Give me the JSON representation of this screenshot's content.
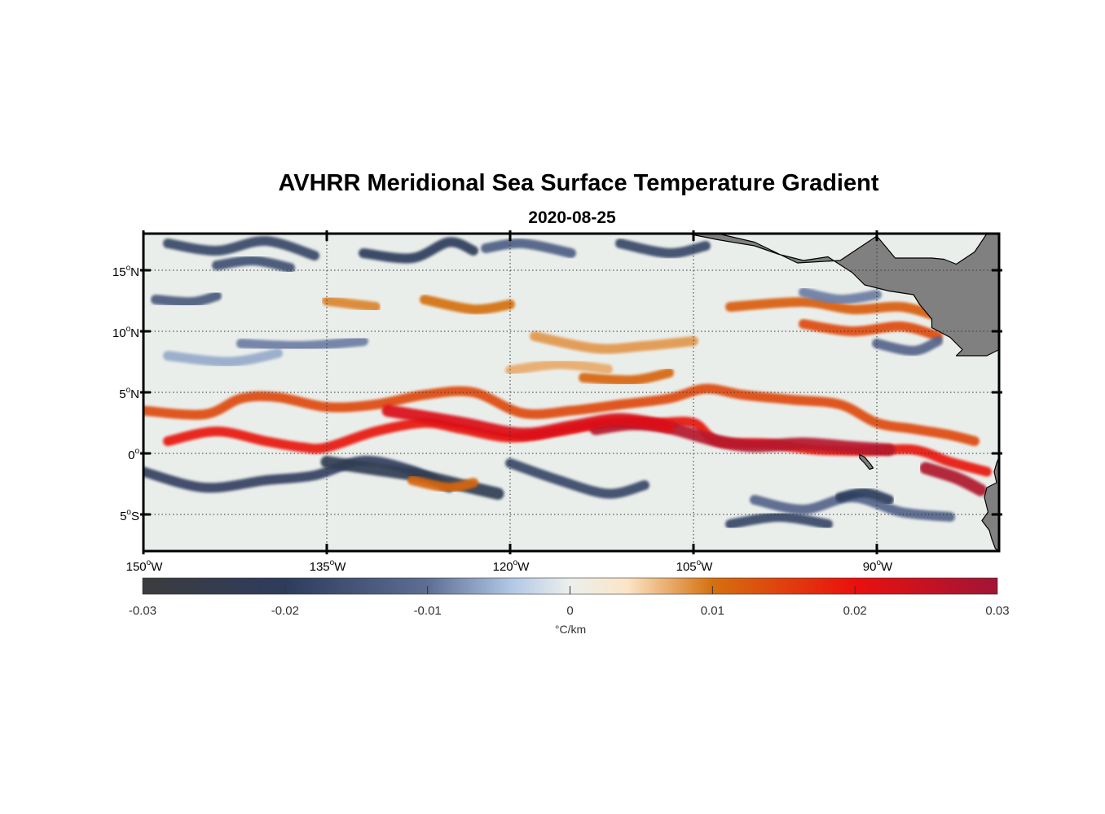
{
  "title": "AVHRR Meridional Sea Surface Temperature Gradient",
  "subtitle": "2020-08-25",
  "map": {
    "lon_range": [
      -150,
      -80
    ],
    "lat_range": [
      -8,
      18
    ],
    "gridlines": true,
    "grid_style": "dotted",
    "land_color": "#808080",
    "lon_ticks": [
      {
        "value": -150,
        "deg": "150",
        "sup": "o",
        "hemi": "W"
      },
      {
        "value": -135,
        "deg": "135",
        "sup": "o",
        "hemi": "W"
      },
      {
        "value": -120,
        "deg": "120",
        "sup": "o",
        "hemi": "W"
      },
      {
        "value": -105,
        "deg": "105",
        "sup": "o",
        "hemi": "W"
      },
      {
        "value": -90,
        "deg": "90",
        "sup": "o",
        "hemi": "W"
      }
    ],
    "lat_ticks": [
      {
        "value": 15,
        "deg": "15",
        "sup": "o",
        "hemi": "N"
      },
      {
        "value": 10,
        "deg": "10",
        "sup": "o",
        "hemi": "N"
      },
      {
        "value": 5,
        "deg": "5",
        "sup": "o",
        "hemi": "N"
      },
      {
        "value": 0,
        "deg": "0",
        "sup": "o",
        "hemi": ""
      },
      {
        "value": -5,
        "deg": "5",
        "sup": "o",
        "hemi": "S"
      }
    ],
    "features": [
      {
        "lon": [
          -150,
          -145,
          -142,
          -139,
          -135,
          -131,
          -127,
          -123,
          -119,
          -115,
          -111,
          -107,
          -104,
          -101,
          -97,
          -93,
          -90,
          -87,
          -84,
          -82
        ],
        "lat": [
          3.5,
          3.2,
          4.5,
          4.6,
          3.8,
          4.0,
          4.8,
          5.0,
          3.3,
          3.5,
          4.0,
          4.5,
          5.3,
          4.8,
          4.4,
          4.0,
          2.5,
          2.0,
          1.5,
          1.0
        ],
        "value": 0.014
      },
      {
        "lon": [
          -148,
          -144,
          -140,
          -137,
          -135,
          -131,
          -127,
          -124,
          -120,
          -116,
          -112,
          -108,
          -105,
          -103,
          -99,
          -95,
          -91,
          -87,
          -84,
          -81
        ],
        "lat": [
          1.0,
          1.8,
          1.0,
          0.5,
          0.5,
          1.8,
          2.5,
          2.0,
          1.3,
          1.8,
          2.5,
          2.5,
          2.5,
          1.0,
          0.8,
          0.3,
          0.2,
          0.3,
          -0.7,
          -1.5
        ],
        "value": 0.019
      },
      {
        "lon": [
          -113,
          -110,
          -107,
          -103,
          -100,
          -96,
          -92,
          -89
        ],
        "lat": [
          2.0,
          2.4,
          2.1,
          1.0,
          0.6,
          0.8,
          0.5,
          0.3
        ],
        "value": 0.027
      },
      {
        "lon": [
          -130,
          -124,
          -119,
          -115,
          -111,
          -107
        ],
        "lat": [
          3.5,
          2.5,
          1.6,
          2.2,
          2.8,
          2.2
        ],
        "value": 0.022
      },
      {
        "lon": [
          -86,
          -83.5,
          -81.5
        ],
        "lat": [
          -1.2,
          -2.0,
          -3.0
        ],
        "value": 0.028
      },
      {
        "lon": [
          -102,
          -96,
          -92,
          -88,
          -85
        ],
        "lat": [
          12.0,
          12.4,
          11.8,
          12.0,
          11.2
        ],
        "value": 0.012
      },
      {
        "lon": [
          -96,
          -92,
          -88,
          -85
        ],
        "lat": [
          10.6,
          10.0,
          10.4,
          9.6
        ],
        "value": 0.014
      },
      {
        "lon": [
          -127,
          -123,
          -120
        ],
        "lat": [
          12.6,
          11.8,
          12.2
        ],
        "value": 0.01
      },
      {
        "lon": [
          -135,
          -131
        ],
        "lat": [
          12.5,
          12.0
        ],
        "value": 0.009
      },
      {
        "lon": [
          -118,
          -113,
          -109,
          -105
        ],
        "lat": [
          9.6,
          8.6,
          8.8,
          9.2
        ],
        "value": 0.008
      },
      {
        "lon": [
          -114,
          -110,
          -107
        ],
        "lat": [
          6.2,
          6.0,
          6.6
        ],
        "value": 0.011
      },
      {
        "lon": [
          -120,
          -116,
          -112
        ],
        "lat": [
          6.8,
          7.3,
          6.9
        ],
        "value": 0.007
      },
      {
        "lon": [
          -150,
          -145,
          -140,
          -136,
          -132,
          -128,
          -125
        ],
        "lat": [
          -1.5,
          -2.8,
          -2.2,
          -1.8,
          -0.6,
          -1.4,
          -2.8
        ],
        "value": -0.019
      },
      {
        "lon": [
          -135,
          -131,
          -127,
          -124,
          -121
        ],
        "lat": [
          -0.7,
          -1.3,
          -1.9,
          -2.6,
          -3.3
        ],
        "value": -0.023
      },
      {
        "lon": [
          -120,
          -116,
          -112,
          -109
        ],
        "lat": [
          -0.8,
          -2.2,
          -3.3,
          -2.6
        ],
        "value": -0.018
      },
      {
        "lon": [
          -102,
          -98,
          -94
        ],
        "lat": [
          -5.8,
          -5.2,
          -5.8
        ],
        "value": -0.018
      },
      {
        "lon": [
          -100,
          -96,
          -92,
          -88,
          -84
        ],
        "lat": [
          -3.8,
          -4.6,
          -3.6,
          -4.8,
          -5.2
        ],
        "value": -0.012
      },
      {
        "lon": [
          -148,
          -144,
          -140,
          -136
        ],
        "lat": [
          17.2,
          16.6,
          17.4,
          16.2
        ],
        "value": -0.018
      },
      {
        "lon": [
          -144,
          -141,
          -138
        ],
        "lat": [
          15.4,
          15.8,
          15.2
        ],
        "value": -0.016
      },
      {
        "lon": [
          -132,
          -128,
          -125,
          -123
        ],
        "lat": [
          16.4,
          16.0,
          17.3,
          16.6
        ],
        "value": -0.02
      },
      {
        "lon": [
          -122,
          -119,
          -115
        ],
        "lat": [
          16.8,
          17.2,
          16.4
        ],
        "value": -0.013
      },
      {
        "lon": [
          -111,
          -107,
          -104
        ],
        "lat": [
          17.2,
          16.4,
          17.0
        ],
        "value": -0.018
      },
      {
        "lon": [
          -96,
          -93,
          -90
        ],
        "lat": [
          13.2,
          12.6,
          13.0
        ],
        "value": -0.009
      },
      {
        "lon": [
          -90,
          -87,
          -85
        ],
        "lat": [
          9.0,
          8.4,
          9.2
        ],
        "value": -0.012
      },
      {
        "lon": [
          -149,
          -146,
          -144
        ],
        "lat": [
          12.6,
          12.4,
          12.9
        ],
        "value": -0.014
      },
      {
        "lon": [
          -142,
          -137,
          -132
        ],
        "lat": [
          9.0,
          8.8,
          9.2
        ],
        "value": -0.009
      },
      {
        "lon": [
          -148,
          -143,
          -139
        ],
        "lat": [
          8.0,
          7.5,
          8.2
        ],
        "value": -0.006
      },
      {
        "lon": [
          -93,
          -91,
          -89
        ],
        "lat": [
          -3.6,
          -3.2,
          -3.8
        ],
        "value": -0.02
      },
      {
        "lon": [
          -128,
          -125,
          -123
        ],
        "lat": [
          -2.2,
          -2.8,
          -2.4
        ],
        "value": 0.011
      }
    ],
    "land": [
      {
        "name": "Mexico-Central America",
        "lon": [
          -105.5,
          -103,
          -100,
          -98,
          -96,
          -94,
          -92,
          -91,
          -89,
          -87,
          -86.5,
          -85.5,
          -85.5,
          -84,
          -83,
          -83.5,
          -81,
          -80,
          -80,
          -81,
          -82,
          -83.5,
          -84.5,
          -85.5,
          -87,
          -88.5,
          -90,
          -93,
          -96.5,
          -100,
          -103
        ],
        "lat": [
          18,
          17.5,
          17,
          16.3,
          15.8,
          16.1,
          14.8,
          13.8,
          13.3,
          13.0,
          12.2,
          11.0,
          10.3,
          9.5,
          8.5,
          8.0,
          8.0,
          8.5,
          18,
          18,
          16.5,
          15.5,
          15.9,
          16.0,
          16.0,
          16.0,
          17.8,
          15.8,
          15.6,
          17.3,
          18
        ]
      },
      {
        "name": "Ecuador-Peru coast",
        "lon": [
          -80,
          -80.2,
          -80.4,
          -80.2,
          -81,
          -81.2,
          -80.9,
          -81.4,
          -80.8,
          -80.6,
          -80.3,
          -80
        ],
        "lat": [
          -0.3,
          -0.8,
          -1.5,
          -2.4,
          -2.8,
          -3.6,
          -4.8,
          -5.5,
          -6.3,
          -7.0,
          -7.8,
          -8
        ]
      },
      {
        "name": "Galapagos",
        "lon": [
          -91.4,
          -91.0,
          -90.5,
          -90.3,
          -90.6,
          -91.0,
          -91.4
        ],
        "lat": [
          -0.1,
          -0.3,
          -0.9,
          -1.2,
          -1.3,
          -0.8,
          -0.4
        ]
      }
    ]
  },
  "colorbar": {
    "label": "°C/km",
    "range": [
      -0.03,
      0.03
    ],
    "ticks": [
      {
        "value": -0.03,
        "label": "-0.03"
      },
      {
        "value": -0.02,
        "label": "-0.02"
      },
      {
        "value": -0.01,
        "label": "-0.01"
      },
      {
        "value": 0,
        "label": "0"
      },
      {
        "value": 0.01,
        "label": "0.01"
      },
      {
        "value": 0.02,
        "label": "0.02"
      },
      {
        "value": 0.03,
        "label": "0.03"
      }
    ],
    "stops": [
      {
        "value": -0.03,
        "color": "#3c3c3f"
      },
      {
        "value": -0.02,
        "color": "#2e3c5c"
      },
      {
        "value": -0.01,
        "color": "#5d6e95"
      },
      {
        "value": -0.004,
        "color": "#b3c9e6"
      },
      {
        "value": 0,
        "color": "#ecefec"
      },
      {
        "value": 0.004,
        "color": "#fbe5c6"
      },
      {
        "value": 0.01,
        "color": "#d5700f"
      },
      {
        "value": 0.02,
        "color": "#ea100e"
      },
      {
        "value": 0.03,
        "color": "#a01536"
      }
    ]
  }
}
